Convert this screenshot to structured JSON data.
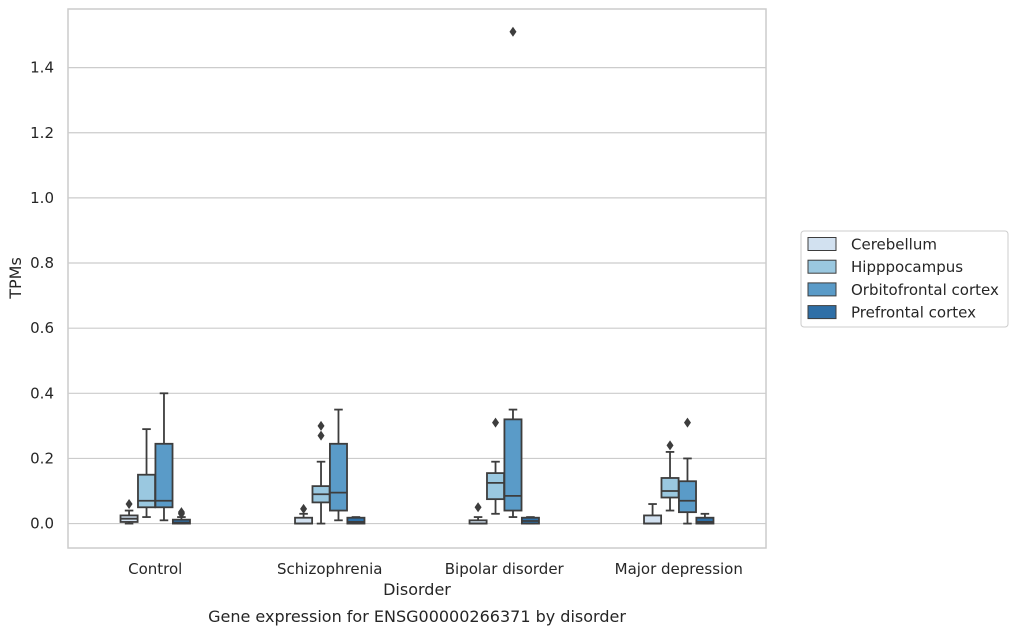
{
  "chart_data": {
    "type": "box",
    "title": "Gene expression for ENSG00000266371 by disorder",
    "xlabel": "Disorder",
    "ylabel": "TPMs",
    "categories": [
      "Control",
      "Schizophrenia",
      "Bipolar disorder",
      "Major depression"
    ],
    "ylim": [
      -0.075,
      1.58
    ],
    "yticks": [
      0.0,
      0.2,
      0.4,
      0.6,
      0.8,
      1.0,
      1.2,
      1.4
    ],
    "ytick_labels": [
      "0.0",
      "0.2",
      "0.4",
      "0.6",
      "0.8",
      "1.0",
      "1.2",
      "1.4"
    ],
    "grid": true,
    "legend_position": "right",
    "series": [
      {
        "name": "Cerebellum",
        "color": "#d2e1f0",
        "boxes": [
          {
            "q1": 0.005,
            "median": 0.015,
            "q3": 0.025,
            "whisker_low": 0.0,
            "whisker_high": 0.04,
            "outliers": [
              0.06
            ]
          },
          {
            "q1": 0.0,
            "median": 0.0,
            "q3": 0.018,
            "whisker_low": 0.0,
            "whisker_high": 0.03,
            "outliers": [
              0.045
            ]
          },
          {
            "q1": 0.0,
            "median": 0.0,
            "q3": 0.01,
            "whisker_low": 0.0,
            "whisker_high": 0.02,
            "outliers": [
              0.05
            ]
          },
          {
            "q1": 0.0,
            "median": 0.0,
            "q3": 0.025,
            "whisker_low": 0.0,
            "whisker_high": 0.06,
            "outliers": []
          }
        ]
      },
      {
        "name": "Hipppocampus",
        "color": "#9ac8e0",
        "boxes": [
          {
            "q1": 0.05,
            "median": 0.07,
            "q3": 0.15,
            "whisker_low": 0.02,
            "whisker_high": 0.29,
            "outliers": []
          },
          {
            "q1": 0.065,
            "median": 0.09,
            "q3": 0.115,
            "whisker_low": 0.0,
            "whisker_high": 0.19,
            "outliers": [
              0.27,
              0.3
            ]
          },
          {
            "q1": 0.075,
            "median": 0.125,
            "q3": 0.155,
            "whisker_low": 0.03,
            "whisker_high": 0.19,
            "outliers": [
              0.31
            ]
          },
          {
            "q1": 0.08,
            "median": 0.1,
            "q3": 0.14,
            "whisker_low": 0.04,
            "whisker_high": 0.22,
            "outliers": [
              0.24
            ]
          }
        ]
      },
      {
        "name": "Orbitofrontal cortex",
        "color": "#5a9bc8",
        "boxes": [
          {
            "q1": 0.05,
            "median": 0.07,
            "q3": 0.245,
            "whisker_low": 0.01,
            "whisker_high": 0.4,
            "outliers": []
          },
          {
            "q1": 0.04,
            "median": 0.095,
            "q3": 0.245,
            "whisker_low": 0.01,
            "whisker_high": 0.35,
            "outliers": []
          },
          {
            "q1": 0.04,
            "median": 0.085,
            "q3": 0.32,
            "whisker_low": 0.02,
            "whisker_high": 0.35,
            "outliers": [
              1.51
            ]
          },
          {
            "q1": 0.035,
            "median": 0.07,
            "q3": 0.13,
            "whisker_low": 0.0,
            "whisker_high": 0.2,
            "outliers": [
              0.31
            ]
          }
        ]
      },
      {
        "name": "Prefrontal cortex",
        "color": "#2e6fa7",
        "boxes": [
          {
            "q1": 0.0,
            "median": 0.003,
            "q3": 0.012,
            "whisker_low": 0.0,
            "whisker_high": 0.02,
            "outliers": [
              0.03,
              0.035
            ]
          },
          {
            "q1": 0.0,
            "median": 0.005,
            "q3": 0.018,
            "whisker_low": 0.0,
            "whisker_high": 0.02,
            "outliers": []
          },
          {
            "q1": 0.0,
            "median": 0.008,
            "q3": 0.018,
            "whisker_low": 0.0,
            "whisker_high": 0.02,
            "outliers": []
          },
          {
            "q1": 0.0,
            "median": 0.005,
            "q3": 0.018,
            "whisker_low": 0.0,
            "whisker_high": 0.03,
            "outliers": []
          }
        ]
      }
    ]
  }
}
